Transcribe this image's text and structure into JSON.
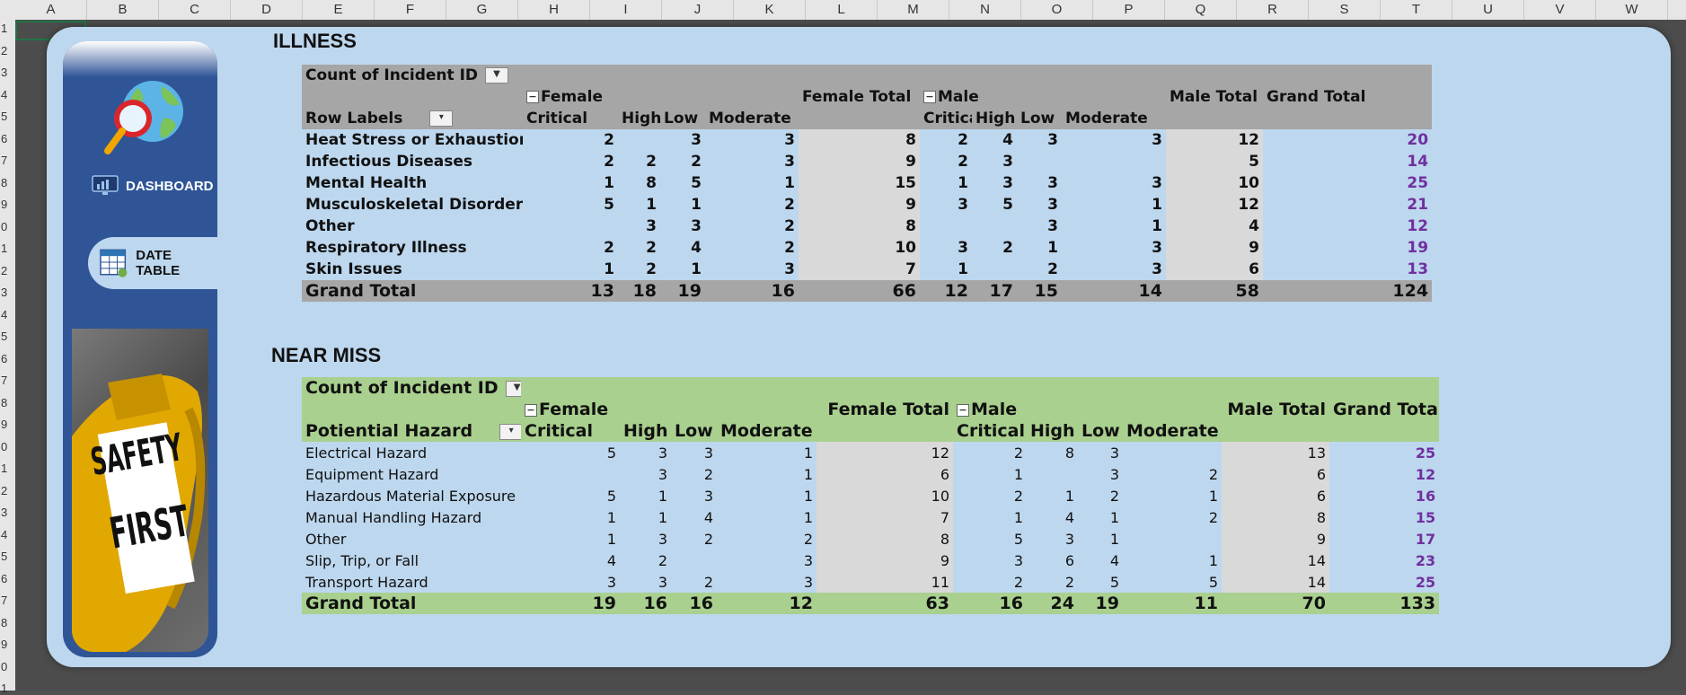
{
  "columns": [
    "A",
    "B",
    "C",
    "D",
    "E",
    "F",
    "G",
    "H",
    "I",
    "J",
    "K",
    "L",
    "M",
    "N",
    "O",
    "P",
    "Q",
    "R",
    "S",
    "T",
    "U",
    "V",
    "W"
  ],
  "rows": [
    "1",
    "2",
    "3",
    "4",
    "5",
    "6",
    "7",
    "8",
    "9",
    "0",
    "1",
    "2",
    "3",
    "4",
    "5",
    "6",
    "7",
    "8",
    "9",
    "0",
    "1",
    "2",
    "3",
    "4",
    "5",
    "6",
    "7",
    "8",
    "9",
    "0",
    "1"
  ],
  "sidebar": {
    "items": [
      {
        "label": "DASHBOARD",
        "icon": "monitor-chart-icon",
        "active": false
      },
      {
        "label": "DATE TABLE",
        "icon": "table-grid-icon",
        "active": true
      }
    ],
    "logo_icon": "globe-magnifier-icon",
    "photo_text": "SAFETY FIRST"
  },
  "illness": {
    "title": "ILLNESS",
    "value_field": "Count of Incident ID",
    "row_label": "Row Labels",
    "female": "Female",
    "female_total": "Female Total",
    "male": "Male",
    "male_total": "Male Total",
    "grand_total": "Grand Total",
    "severities_female": [
      "Critical",
      "High",
      "Low",
      "Moderate"
    ],
    "severities_male": [
      "Critical",
      "High",
      "Low",
      "Moderate"
    ],
    "rows": [
      {
        "label": "Heat Stress or Exhaustion",
        "f": [
          "2",
          "",
          "3",
          "3"
        ],
        "ft": "8",
        "m": [
          "2",
          "4",
          "3",
          "3"
        ],
        "mt": "12",
        "gt": "20"
      },
      {
        "label": "Infectious Diseases",
        "f": [
          "2",
          "2",
          "2",
          "3"
        ],
        "ft": "9",
        "m": [
          "2",
          "3",
          "",
          ""
        ],
        "mt": "5",
        "gt": "14"
      },
      {
        "label": "Mental Health",
        "f": [
          "1",
          "8",
          "5",
          "1"
        ],
        "ft": "15",
        "m": [
          "1",
          "3",
          "3",
          "3"
        ],
        "mt": "10",
        "gt": "25"
      },
      {
        "label": "Musculoskeletal Disorders",
        "f": [
          "5",
          "1",
          "1",
          "2"
        ],
        "ft": "9",
        "m": [
          "3",
          "5",
          "3",
          "1"
        ],
        "mt": "12",
        "gt": "21"
      },
      {
        "label": "Other",
        "f": [
          "",
          "3",
          "3",
          "2"
        ],
        "ft": "8",
        "m": [
          "",
          "",
          "3",
          "1"
        ],
        "mt": "4",
        "gt": "12"
      },
      {
        "label": "Respiratory Illness",
        "f": [
          "2",
          "2",
          "4",
          "2"
        ],
        "ft": "10",
        "m": [
          "3",
          "2",
          "1",
          "3"
        ],
        "mt": "9",
        "gt": "19"
      },
      {
        "label": "Skin Issues",
        "f": [
          "1",
          "2",
          "1",
          "3"
        ],
        "ft": "7",
        "m": [
          "1",
          "",
          "2",
          "3"
        ],
        "mt": "6",
        "gt": "13"
      }
    ],
    "total": {
      "label": "Grand Total",
      "f": [
        "13",
        "18",
        "19",
        "16"
      ],
      "ft": "66",
      "m": [
        "12",
        "17",
        "15",
        "14"
      ],
      "mt": "58",
      "gt": "124"
    }
  },
  "near_miss": {
    "title": "NEAR MISS",
    "value_field": "Count of Incident ID",
    "row_label": "Potiential Hazard",
    "female": "Female",
    "female_total": "Female Total",
    "male": "Male",
    "male_total": "Male Total",
    "grand_total": "Grand Total",
    "severities_female": [
      "Critical",
      "High",
      "Low",
      "Moderate"
    ],
    "severities_male": [
      "Critical",
      "High",
      "Low",
      "Moderate"
    ],
    "rows": [
      {
        "label": "Electrical Hazard",
        "f": [
          "5",
          "3",
          "3",
          "1"
        ],
        "ft": "12",
        "m": [
          "2",
          "8",
          "3",
          ""
        ],
        "mt": "13",
        "gt": "25"
      },
      {
        "label": "Equipment Hazard",
        "f": [
          "",
          "3",
          "2",
          "1"
        ],
        "ft": "6",
        "m": [
          "1",
          "",
          "3",
          "2"
        ],
        "mt": "6",
        "gt": "12"
      },
      {
        "label": "Hazardous Material Exposure",
        "f": [
          "5",
          "1",
          "3",
          "1"
        ],
        "ft": "10",
        "m": [
          "2",
          "1",
          "2",
          "1"
        ],
        "mt": "6",
        "gt": "16"
      },
      {
        "label": "Manual Handling Hazard",
        "f": [
          "1",
          "1",
          "4",
          "1"
        ],
        "ft": "7",
        "m": [
          "1",
          "4",
          "1",
          "2"
        ],
        "mt": "8",
        "gt": "15"
      },
      {
        "label": "Other",
        "f": [
          "1",
          "3",
          "2",
          "2"
        ],
        "ft": "8",
        "m": [
          "5",
          "3",
          "1",
          ""
        ],
        "mt": "9",
        "gt": "17"
      },
      {
        "label": "Slip, Trip, or Fall",
        "f": [
          "4",
          "2",
          "",
          "3"
        ],
        "ft": "9",
        "m": [
          "3",
          "6",
          "4",
          "1"
        ],
        "mt": "14",
        "gt": "23"
      },
      {
        "label": "Transport Hazard",
        "f": [
          "3",
          "3",
          "2",
          "3"
        ],
        "ft": "11",
        "m": [
          "2",
          "2",
          "5",
          "5"
        ],
        "mt": "14",
        "gt": "25"
      }
    ],
    "total": {
      "label": "Grand Total",
      "f": [
        "19",
        "16",
        "16",
        "12"
      ],
      "ft": "63",
      "m": [
        "16",
        "24",
        "19",
        "11"
      ],
      "mt": "70",
      "gt": "133"
    }
  },
  "colors": {
    "canvas": "#bdd7ee",
    "sidebar": "#2f5597",
    "illness_header": "#a6a6a6",
    "near_miss_header": "#a9d08e",
    "grand_total_text": "#7030a0"
  }
}
